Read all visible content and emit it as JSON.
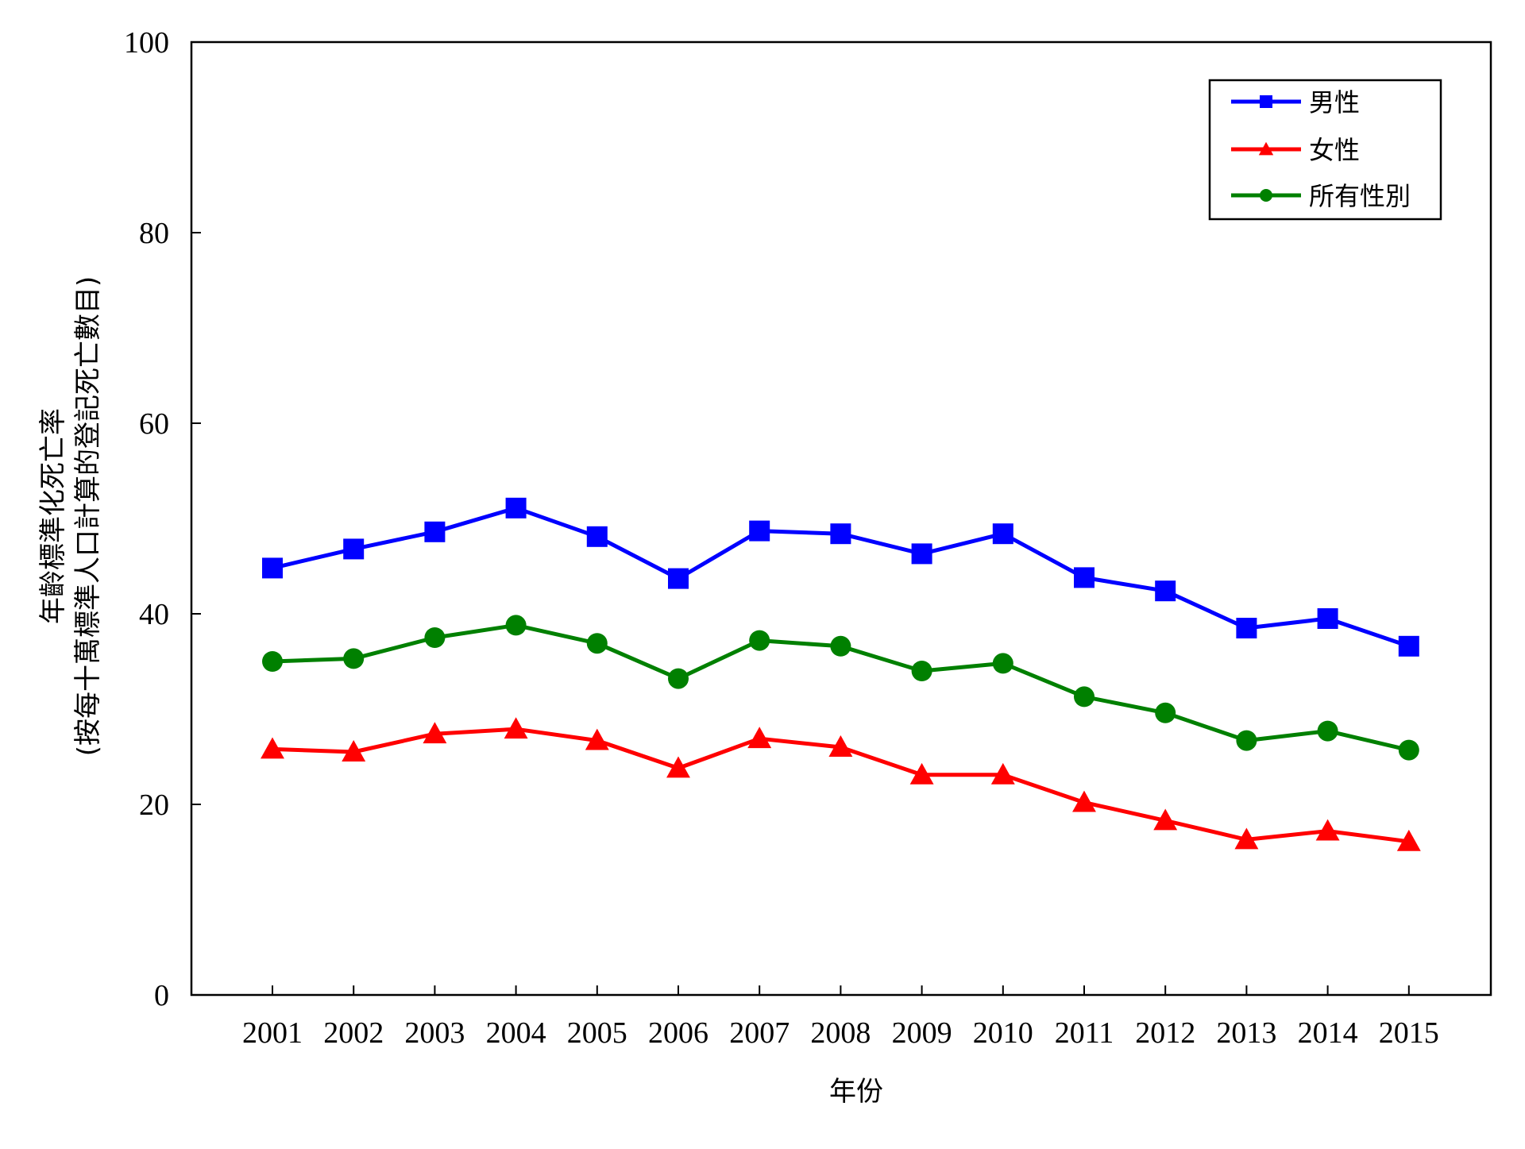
{
  "chart_data": {
    "type": "line",
    "title": "",
    "xlabel": "年份",
    "ylabel_line1": "年齡標準化死亡率",
    "ylabel_line2": "(按每十萬標準人口計算的登記死亡數目)",
    "ylim": [
      0,
      100
    ],
    "yticks": [
      0,
      20,
      40,
      60,
      80,
      100
    ],
    "categories": [
      "2001",
      "2002",
      "2003",
      "2004",
      "2005",
      "2006",
      "2007",
      "2008",
      "2009",
      "2010",
      "2011",
      "2012",
      "2013",
      "2014",
      "2015"
    ],
    "grid": false,
    "legend_position": "top-right",
    "series": [
      {
        "name": "男性",
        "color": "#0000ff",
        "marker": "square",
        "values": [
          44.8,
          46.8,
          48.6,
          51.1,
          48.1,
          43.7,
          48.7,
          48.4,
          46.3,
          48.4,
          43.8,
          42.4,
          38.5,
          39.5,
          36.6
        ]
      },
      {
        "name": "女性",
        "color": "#ff0000",
        "marker": "triangle",
        "values": [
          25.8,
          25.5,
          27.4,
          27.9,
          26.7,
          23.8,
          26.9,
          26.0,
          23.1,
          23.1,
          20.2,
          18.3,
          16.3,
          17.2,
          16.1
        ]
      },
      {
        "name": "所有性別",
        "color": "#008000",
        "marker": "circle",
        "values": [
          35.0,
          35.3,
          37.5,
          38.8,
          36.9,
          33.2,
          37.2,
          36.6,
          34.0,
          34.8,
          31.3,
          29.6,
          26.7,
          27.7,
          25.7
        ]
      }
    ]
  }
}
